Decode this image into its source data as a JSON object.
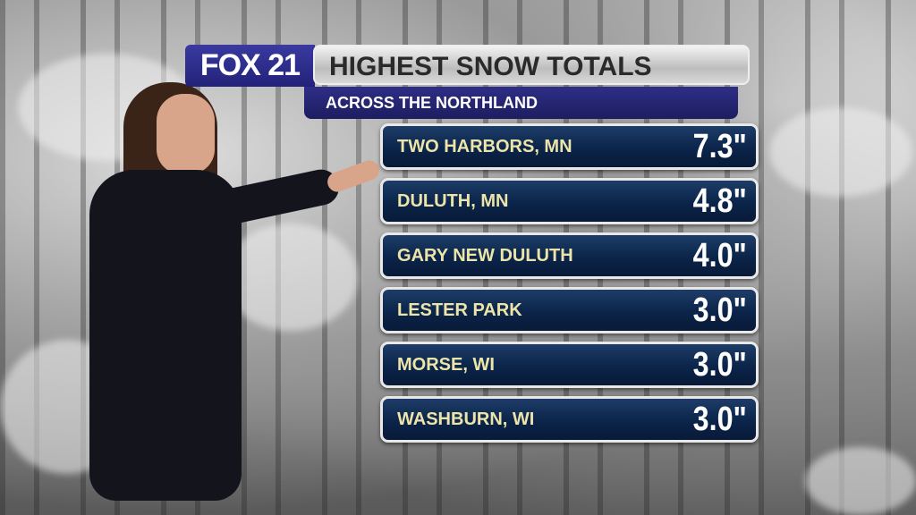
{
  "logo": "FOX 21",
  "title": "HIGHEST SNOW TOTALS",
  "subtitle": "ACROSS THE NORTHLAND",
  "colors": {
    "row_bg": "#0b2449",
    "label": "#ece4a8",
    "banner": "#2e2e86"
  },
  "rows": [
    {
      "location": "TWO HARBORS, MN",
      "amount": "7.3\""
    },
    {
      "location": "DULUTH, MN",
      "amount": "4.8\""
    },
    {
      "location": "GARY NEW DULUTH",
      "amount": "4.0\""
    },
    {
      "location": "LESTER PARK",
      "amount": "3.0\""
    },
    {
      "location": "MORSE, WI",
      "amount": "3.0\""
    },
    {
      "location": "WASHBURN, WI",
      "amount": "3.0\""
    }
  ]
}
